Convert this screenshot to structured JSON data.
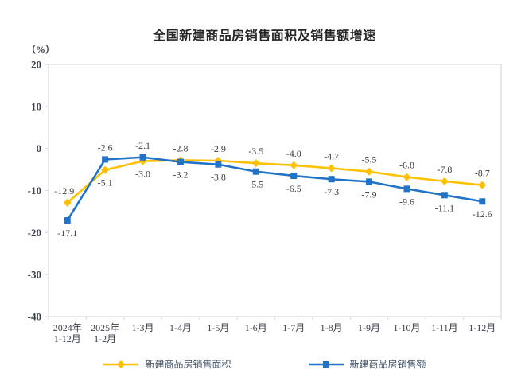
{
  "title": "全国新建商品房销售面积及销售额增速",
  "chart_data": {
    "type": "line",
    "unit": "（%）",
    "categories": [
      [
        "2024年",
        "1-12月"
      ],
      [
        "2025年",
        "1-2月"
      ],
      [
        "1-3月"
      ],
      [
        "1-4月"
      ],
      [
        "1-5月"
      ],
      [
        "1-6月"
      ],
      [
        "1-7月"
      ],
      [
        "1-8月"
      ],
      [
        "1-9月"
      ],
      [
        "1-10月"
      ],
      [
        "1-11月"
      ],
      [
        "1-12月"
      ]
    ],
    "series": [
      {
        "name": "新建商品房销售面积",
        "color": "#FFC000",
        "marker": "diamond",
        "values": [
          -12.9,
          -5.1,
          -3.0,
          -2.8,
          -2.9,
          -3.5,
          -4.0,
          -4.7,
          -5.5,
          -6.8,
          -7.8,
          -8.7
        ],
        "label_side": [
          "above",
          "below",
          "below",
          "above",
          "above",
          "above",
          "above",
          "above",
          "above",
          "above",
          "above",
          "above"
        ]
      },
      {
        "name": "新建商品房销售额",
        "color": "#2173C8",
        "marker": "square",
        "values": [
          -17.1,
          -2.6,
          -2.1,
          -3.2,
          -3.8,
          -5.5,
          -6.5,
          -7.3,
          -7.9,
          -9.6,
          -11.1,
          -12.6
        ],
        "label_side": [
          "below",
          "above",
          "above",
          "below",
          "below",
          "below",
          "below",
          "below",
          "below",
          "below",
          "below",
          "below"
        ]
      }
    ],
    "ylim": [
      -40,
      20
    ],
    "yticks": [
      20,
      10,
      0,
      -10,
      -20,
      -30,
      -40
    ],
    "grid": false,
    "legend_position": "bottom"
  },
  "colors": {
    "background": "#FFFFFF",
    "frame": "#D9D9D9",
    "title_text": "#262626",
    "axis_text": "#3A414D",
    "data_label_text": "#3F3F3F",
    "legend_text": "#44546A"
  }
}
